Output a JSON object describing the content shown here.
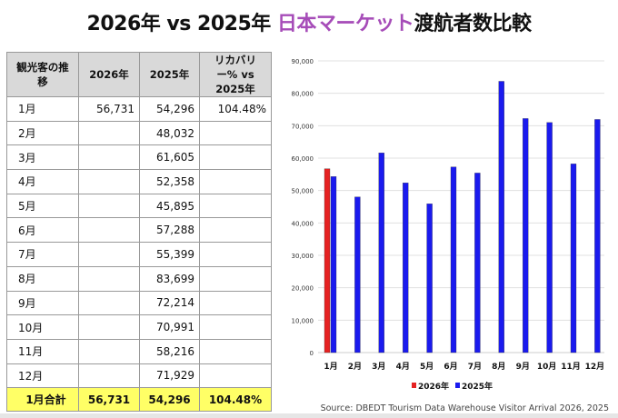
{
  "title": {
    "part1": "2026年 vs 2025年 ",
    "highlight": "日本マーケット",
    "part2": "渡航者数比較"
  },
  "table": {
    "headers": [
      "観光客の推移",
      "2026年",
      "2025年",
      "リカバリー% vs 2025年"
    ],
    "rows": [
      [
        "1月",
        "56,731",
        "54,296",
        "104.48%"
      ],
      [
        "2月",
        "",
        "48,032",
        ""
      ],
      [
        "3月",
        "",
        "61,605",
        ""
      ],
      [
        "4月",
        "",
        "52,358",
        ""
      ],
      [
        "5月",
        "",
        "45,895",
        ""
      ],
      [
        "6月",
        "",
        "57,288",
        ""
      ],
      [
        "7月",
        "",
        "55,399",
        ""
      ],
      [
        "8月",
        "",
        "83,699",
        ""
      ],
      [
        "9月",
        "",
        "72,214",
        ""
      ],
      [
        "10月",
        "",
        "70,991",
        ""
      ],
      [
        "11月",
        "",
        "58,216",
        ""
      ],
      [
        "12月",
        "",
        "71,929",
        ""
      ]
    ],
    "total": [
      "1月合計",
      "56,731",
      "54,296",
      "104.48%"
    ]
  },
  "chart_data": {
    "type": "bar",
    "categories": [
      "1月",
      "2月",
      "3月",
      "4月",
      "5月",
      "6月",
      "7月",
      "8月",
      "9月",
      "10月",
      "11月",
      "12月"
    ],
    "series": [
      {
        "name": "2026年",
        "color": "#e52222",
        "values": [
          56731,
          null,
          null,
          null,
          null,
          null,
          null,
          null,
          null,
          null,
          null,
          null
        ]
      },
      {
        "name": "2025年",
        "color": "#1a1aee",
        "values": [
          54296,
          48032,
          61605,
          52358,
          45895,
          57288,
          55399,
          83699,
          72214,
          70991,
          58216,
          71929
        ]
      }
    ],
    "ylim": [
      0,
      90000
    ],
    "yticks": [
      "0",
      "10,000",
      "20,000",
      "30,000",
      "40,000",
      "50,000",
      "60,000",
      "70,000",
      "80,000",
      "90,000"
    ],
    "legend": "bottom"
  },
  "source": "Source: DBEDT Tourism Data Warehouse Visitor Arrival 2026, 2025"
}
